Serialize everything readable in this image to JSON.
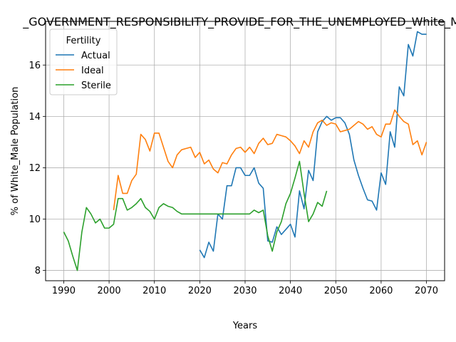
{
  "chart_data": {
    "type": "line",
    "title": "_GOVERNMENT_RESPONSIBILITY_PROVIDE_FOR_THE_UNEMPLOYED_White_Ma",
    "xlabel": "Years",
    "ylabel": "% of White_Male Population",
    "xlim": [
      1986,
      2074
    ],
    "ylim": [
      7.6,
      17.7
    ],
    "xticks": [
      1990,
      2000,
      2010,
      2020,
      2030,
      2040,
      2050,
      2060,
      2070
    ],
    "yticks": [
      8,
      10,
      12,
      14,
      16
    ],
    "grid": true,
    "legend": {
      "title": "Fertility",
      "position": "top-left"
    },
    "series": [
      {
        "name": "Actual",
        "color": "#1f77b4",
        "x": [
          2020,
          2021,
          2022,
          2023,
          2024,
          2025,
          2026,
          2027,
          2028,
          2029,
          2030,
          2031,
          2032,
          2033,
          2034,
          2035,
          2036,
          2037,
          2038,
          2039,
          2040,
          2041,
          2042,
          2043,
          2044,
          2045,
          2046,
          2047,
          2048,
          2049,
          2050,
          2051,
          2052,
          2053,
          2054,
          2055,
          2056,
          2057,
          2058,
          2059,
          2060,
          2061,
          2062,
          2063,
          2064,
          2065,
          2066,
          2067,
          2068,
          2069,
          2070
        ],
        "values": [
          8.8,
          8.5,
          9.1,
          8.75,
          10.2,
          10.0,
          11.3,
          11.3,
          12.0,
          12.0,
          11.7,
          11.7,
          12.0,
          11.4,
          11.2,
          9.15,
          9.1,
          9.7,
          9.4,
          9.6,
          9.8,
          9.3,
          11.1,
          10.4,
          11.9,
          11.5,
          13.4,
          13.8,
          14.0,
          13.85,
          13.95,
          13.95,
          13.75,
          13.3,
          12.3,
          11.7,
          11.2,
          10.75,
          10.7,
          10.35,
          11.8,
          11.35,
          13.4,
          12.8,
          15.15,
          14.8,
          16.8,
          16.35,
          17.3,
          17.2,
          17.2
        ]
      },
      {
        "name": "Ideal",
        "color": "#ff7f0e",
        "x": [
          2001,
          2002,
          2003,
          2004,
          2005,
          2006,
          2007,
          2008,
          2009,
          2010,
          2011,
          2012,
          2013,
          2014,
          2015,
          2016,
          2017,
          2018,
          2019,
          2020,
          2021,
          2022,
          2023,
          2024,
          2025,
          2026,
          2027,
          2028,
          2029,
          2030,
          2031,
          2032,
          2033,
          2034,
          2035,
          2036,
          2037,
          2038,
          2039,
          2040,
          2041,
          2042,
          2043,
          2044,
          2045,
          2046,
          2047,
          2048,
          2049,
          2050,
          2051,
          2052,
          2053,
          2054,
          2055,
          2056,
          2057,
          2058,
          2059,
          2060,
          2061,
          2062,
          2063,
          2064,
          2065,
          2066,
          2067,
          2068,
          2069,
          2070
        ],
        "values": [
          10.35,
          11.7,
          11.0,
          11.0,
          11.5,
          11.75,
          13.3,
          13.1,
          12.65,
          13.35,
          13.35,
          12.8,
          12.25,
          12.0,
          12.5,
          12.7,
          12.75,
          12.8,
          12.4,
          12.6,
          12.15,
          12.3,
          11.95,
          11.8,
          12.2,
          12.15,
          12.5,
          12.75,
          12.8,
          12.6,
          12.8,
          12.55,
          12.95,
          13.15,
          12.9,
          12.95,
          13.3,
          13.25,
          13.2,
          13.05,
          12.85,
          12.55,
          13.05,
          12.8,
          13.4,
          13.75,
          13.85,
          13.65,
          13.75,
          13.7,
          13.4,
          13.45,
          13.5,
          13.65,
          13.8,
          13.7,
          13.5,
          13.6,
          13.3,
          13.2,
          13.7,
          13.7,
          14.25,
          14.0,
          13.8,
          13.7,
          12.9,
          13.05,
          12.5,
          13.0
        ]
      },
      {
        "name": "Sterile",
        "color": "#2ca02c",
        "x": [
          1990,
          1991,
          1992,
          1993,
          1994,
          1995,
          1996,
          1997,
          1998,
          1999,
          2000,
          2001,
          2002,
          2003,
          2004,
          2005,
          2006,
          2007,
          2008,
          2009,
          2010,
          2011,
          2012,
          2013,
          2014,
          2015,
          2016,
          2017,
          2018,
          2019,
          2020,
          2021,
          2022,
          2023,
          2024,
          2025,
          2026,
          2027,
          2028,
          2029,
          2030,
          2031,
          2032,
          2033,
          2034,
          2035,
          2036,
          2037,
          2038,
          2039,
          2040,
          2041,
          2042,
          2043,
          2044,
          2045,
          2046,
          2047,
          2048
        ],
        "values": [
          9.5,
          9.15,
          8.55,
          8.0,
          9.5,
          10.45,
          10.2,
          9.85,
          10.0,
          9.65,
          9.65,
          9.8,
          10.8,
          10.8,
          10.35,
          10.45,
          10.6,
          10.8,
          10.45,
          10.3,
          10.0,
          10.45,
          10.6,
          10.5,
          10.45,
          10.3,
          10.2,
          10.2,
          10.2,
          10.2,
          10.2,
          10.2,
          10.2,
          10.2,
          10.2,
          10.2,
          10.2,
          10.2,
          10.2,
          10.2,
          10.2,
          10.2,
          10.35,
          10.25,
          10.35,
          9.35,
          8.75,
          9.5,
          9.9,
          10.6,
          11.0,
          11.6,
          12.25,
          11.0,
          9.9,
          10.2,
          10.65,
          10.5,
          11.1
        ]
      }
    ]
  }
}
